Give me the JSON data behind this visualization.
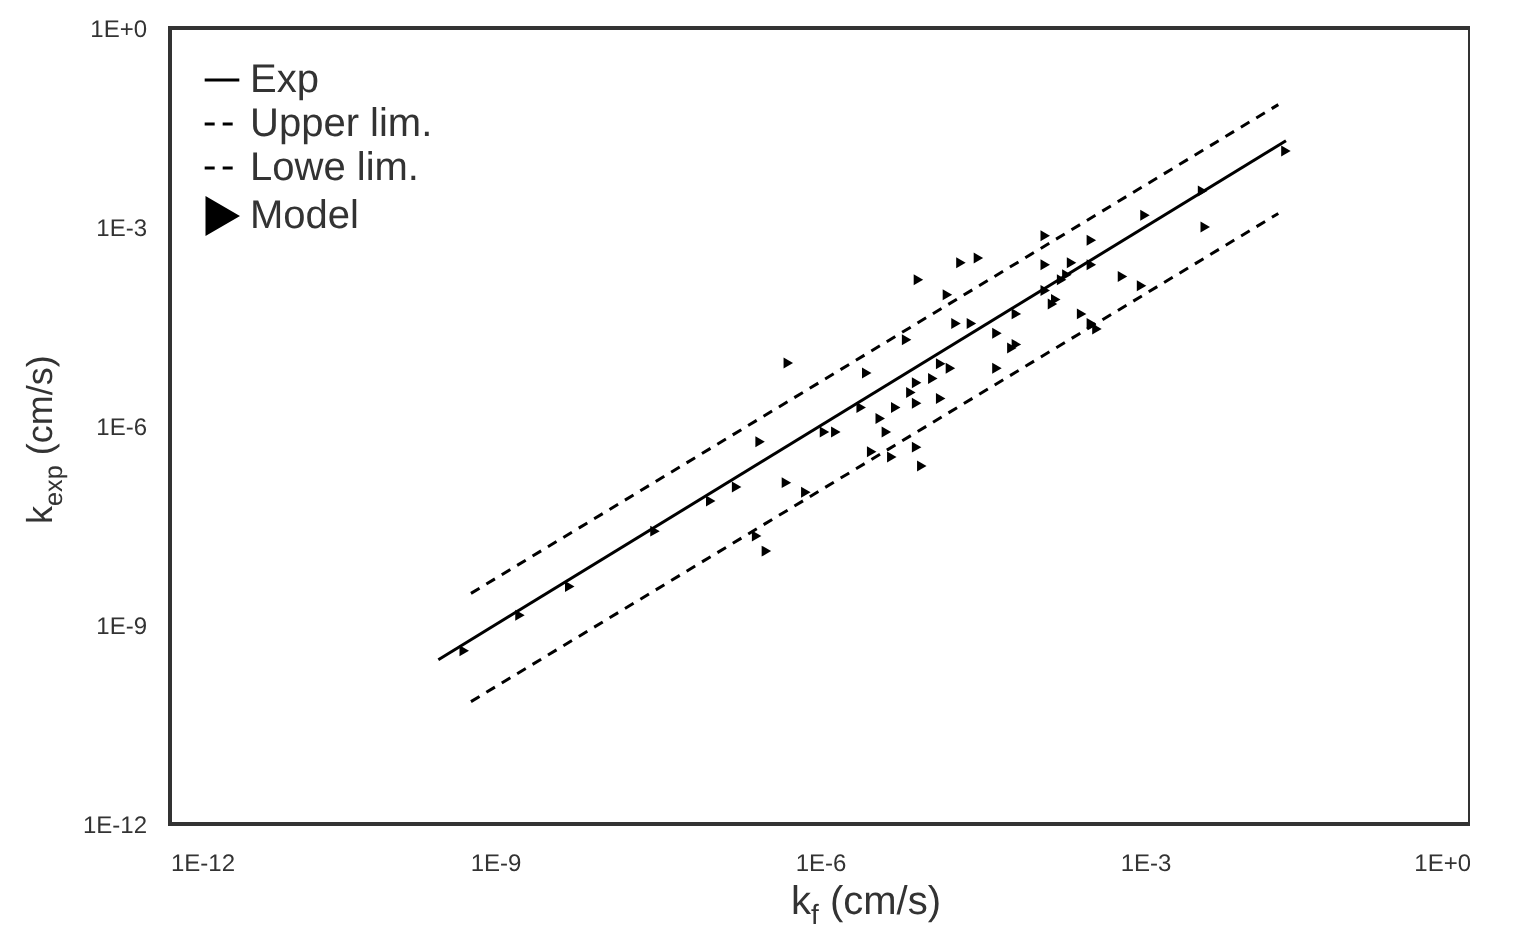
{
  "chart_data": {
    "type": "scatter",
    "xlabel": "k$_{f}$ (cm/s)",
    "ylabel": "k$_{exp}$ (cm/s)",
    "log": "xy",
    "grid": false,
    "legend": "top left",
    "xlim": [
      1e-12,
      1
    ],
    "ylim": [
      1e-12,
      1
    ],
    "xticks": [
      {
        "value": 1e-12,
        "label": "1E-12"
      },
      {
        "value": 1e-09,
        "label": "1E-9"
      },
      {
        "value": 1e-06,
        "label": "1E-6"
      },
      {
        "value": 0.001,
        "label": "1E-3"
      },
      {
        "value": 1,
        "label": "1E+0"
      }
    ],
    "yticks": [
      {
        "value": 1e-12,
        "label": "1E-12"
      },
      {
        "value": 1e-09,
        "label": "1E-9"
      },
      {
        "value": 1e-06,
        "label": "1E-6"
      },
      {
        "value": 0.001,
        "label": "1E-3"
      },
      {
        "value": 1,
        "label": "1E+0"
      }
    ],
    "series": [
      {
        "name": "Exp",
        "type": "line",
        "line_style": "solid",
        "color": "#000000",
        "x": [
          3e-10,
          0.02
        ],
        "values": [
          3e-10,
          0.02
        ]
      },
      {
        "name": "Upper lim.",
        "type": "line",
        "line_style": "dashed",
        "color": "#000000",
        "x": [
          6e-10,
          0.017
        ],
        "values": [
          3e-09,
          0.07
        ]
      },
      {
        "name": "Lowe lim.",
        "type": "line",
        "line_style": "dashed",
        "color": "#000000",
        "x": [
          6e-10,
          0.017
        ],
        "values": [
          7e-11,
          0.0016
        ]
      },
      {
        "name": "Model",
        "marker": "triangle",
        "color": "#000000",
        "x": [
          5.1e-07,
          8.1e-06,
          2e-05,
          2.9e-05,
          0.00012,
          0.00032,
          0.001,
          0.0034,
          0.0036,
          0.02,
          0.00062,
          0.00093,
          0.00036,
          0.00026,
          0.00015,
          0.00012,
          0.00017,
          0.00021,
          0.00032,
          0.00012,
          6.5e-05,
          4.3e-05,
          5.9e-05,
          1.5e-05,
          1.8e-05,
          2.5e-05,
          1.3e-05,
          1.6e-05,
          1.1e-05,
          7.8e-06,
          6.3e-06,
          6.9e-06,
          1.3e-05,
          7.8e-06,
          5e-06,
          3.6e-06,
          4.1e-06,
          3e-06,
          4.6e-06,
          7.8e-06,
          8.7e-06,
          2.7e-06,
          2.4e-06,
          1.4e-06,
          7.4e-07,
          4.9e-07,
          2.8e-07,
          2.6e-07,
          3.2e-07,
          1.7e-07,
          9.8e-08,
          3e-08,
          4.9e-09,
          1.7e-09,
          5.2e-10,
          1.1e-06,
          4.3e-05,
          0.00014,
          0.00032,
          0.00019,
          6.5e-05
        ],
        "values": [
          8.9e-06,
          0.00016,
          0.00029,
          0.00034,
          0.00074,
          0.00063,
          0.0015,
          0.0035,
          0.001,
          0.014,
          0.00018,
          0.00013,
          2.9e-05,
          4.9e-05,
          8.1e-05,
          0.00011,
          0.00016,
          0.00029,
          0.00027,
          0.00027,
          1.7e-05,
          7.4e-06,
          1.5e-05,
          9.5e-05,
          3.5e-05,
          3.5e-05,
          8.7e-06,
          7.4e-06,
          5.2e-06,
          4.5e-06,
          2e-05,
          3.2e-06,
          2.6e-06,
          2.2e-06,
          1.9e-06,
          1.3e-06,
          8.1e-07,
          4.1e-07,
          3.4e-07,
          4.8e-07,
          2.5e-07,
          6.3e-06,
          1.9e-06,
          8.1e-07,
          1e-07,
          1.4e-07,
          5.8e-07,
          2.2e-08,
          1.3e-08,
          1.2e-07,
          7.4e-08,
          2.6e-08,
          3.8e-09,
          1.4e-09,
          4.1e-10,
          8.1e-07,
          2.5e-05,
          6.9e-05,
          3.5e-05,
          0.00019,
          4.9e-05
        ]
      }
    ]
  }
}
